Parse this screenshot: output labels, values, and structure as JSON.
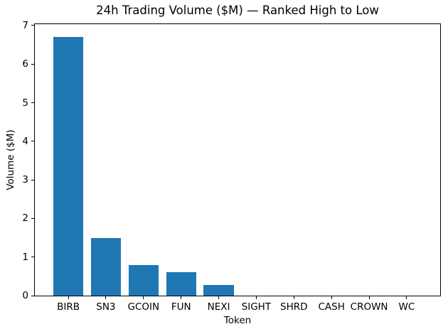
{
  "chart_data": {
    "type": "bar",
    "title": "24h Trading Volume ($M) — Ranked High to Low",
    "xlabel": "Token",
    "ylabel": "Volume ($M)",
    "categories": [
      "BIRB",
      "SN3",
      "GCOIN",
      "FUN",
      "NEXI",
      "SIGHT",
      "SHRD",
      "CASH",
      "CROWN",
      "WC"
    ],
    "values": [
      6.7,
      1.5,
      0.8,
      0.6,
      0.27,
      0,
      0,
      0,
      0,
      0
    ],
    "yticks": [
      0,
      1,
      2,
      3,
      4,
      5,
      6,
      7
    ],
    "ylim": [
      0,
      7.035
    ],
    "xlim": [
      -0.89,
      9.89
    ],
    "bar_width": 0.8,
    "bar_color": "#1f77b4",
    "axis_color": "#000000",
    "background_color": "#ffffff",
    "grid": false,
    "legend": "none"
  }
}
